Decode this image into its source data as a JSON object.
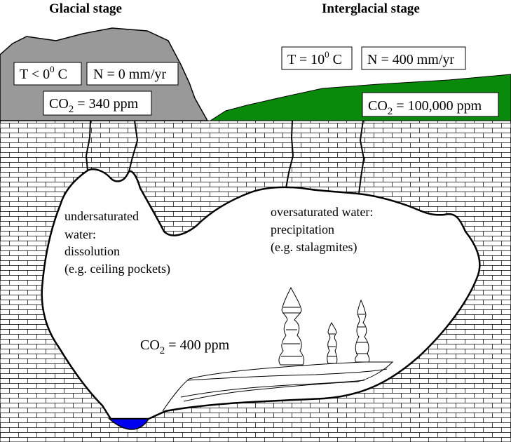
{
  "headings": {
    "glacial": "Glacial stage",
    "interglacial": "Interglacial stage"
  },
  "glacial": {
    "temp_prefix": "T < 0",
    "temp_sup": "0",
    "temp_suffix": " C",
    "precip": "N = 0 mm/yr",
    "co2_prefix": "CO",
    "co2_sub": "2",
    "co2_value": " = 340 ppm"
  },
  "interglacial": {
    "temp_prefix": "T = 10",
    "temp_sup": "0",
    "temp_suffix": " C",
    "precip": "N = 400 mm/yr",
    "co2_prefix": "CO",
    "co2_sub": "2",
    "co2_value": " = 100,000 ppm"
  },
  "cave": {
    "undersaturated": [
      "undersaturated",
      "water:",
      "dissolution",
      "(e.g. ceiling pockets)"
    ],
    "oversaturated": [
      "oversaturated water:",
      "precipitation",
      "(e.g. stalagmites)"
    ],
    "co2_prefix": "CO",
    "co2_sub": "2",
    "co2_value": " = 400 ppm"
  },
  "colors": {
    "glacier_rock": "#999999",
    "vegetation": "#0a8a0a",
    "pool_water": "#0000ee",
    "outline": "#000000"
  }
}
